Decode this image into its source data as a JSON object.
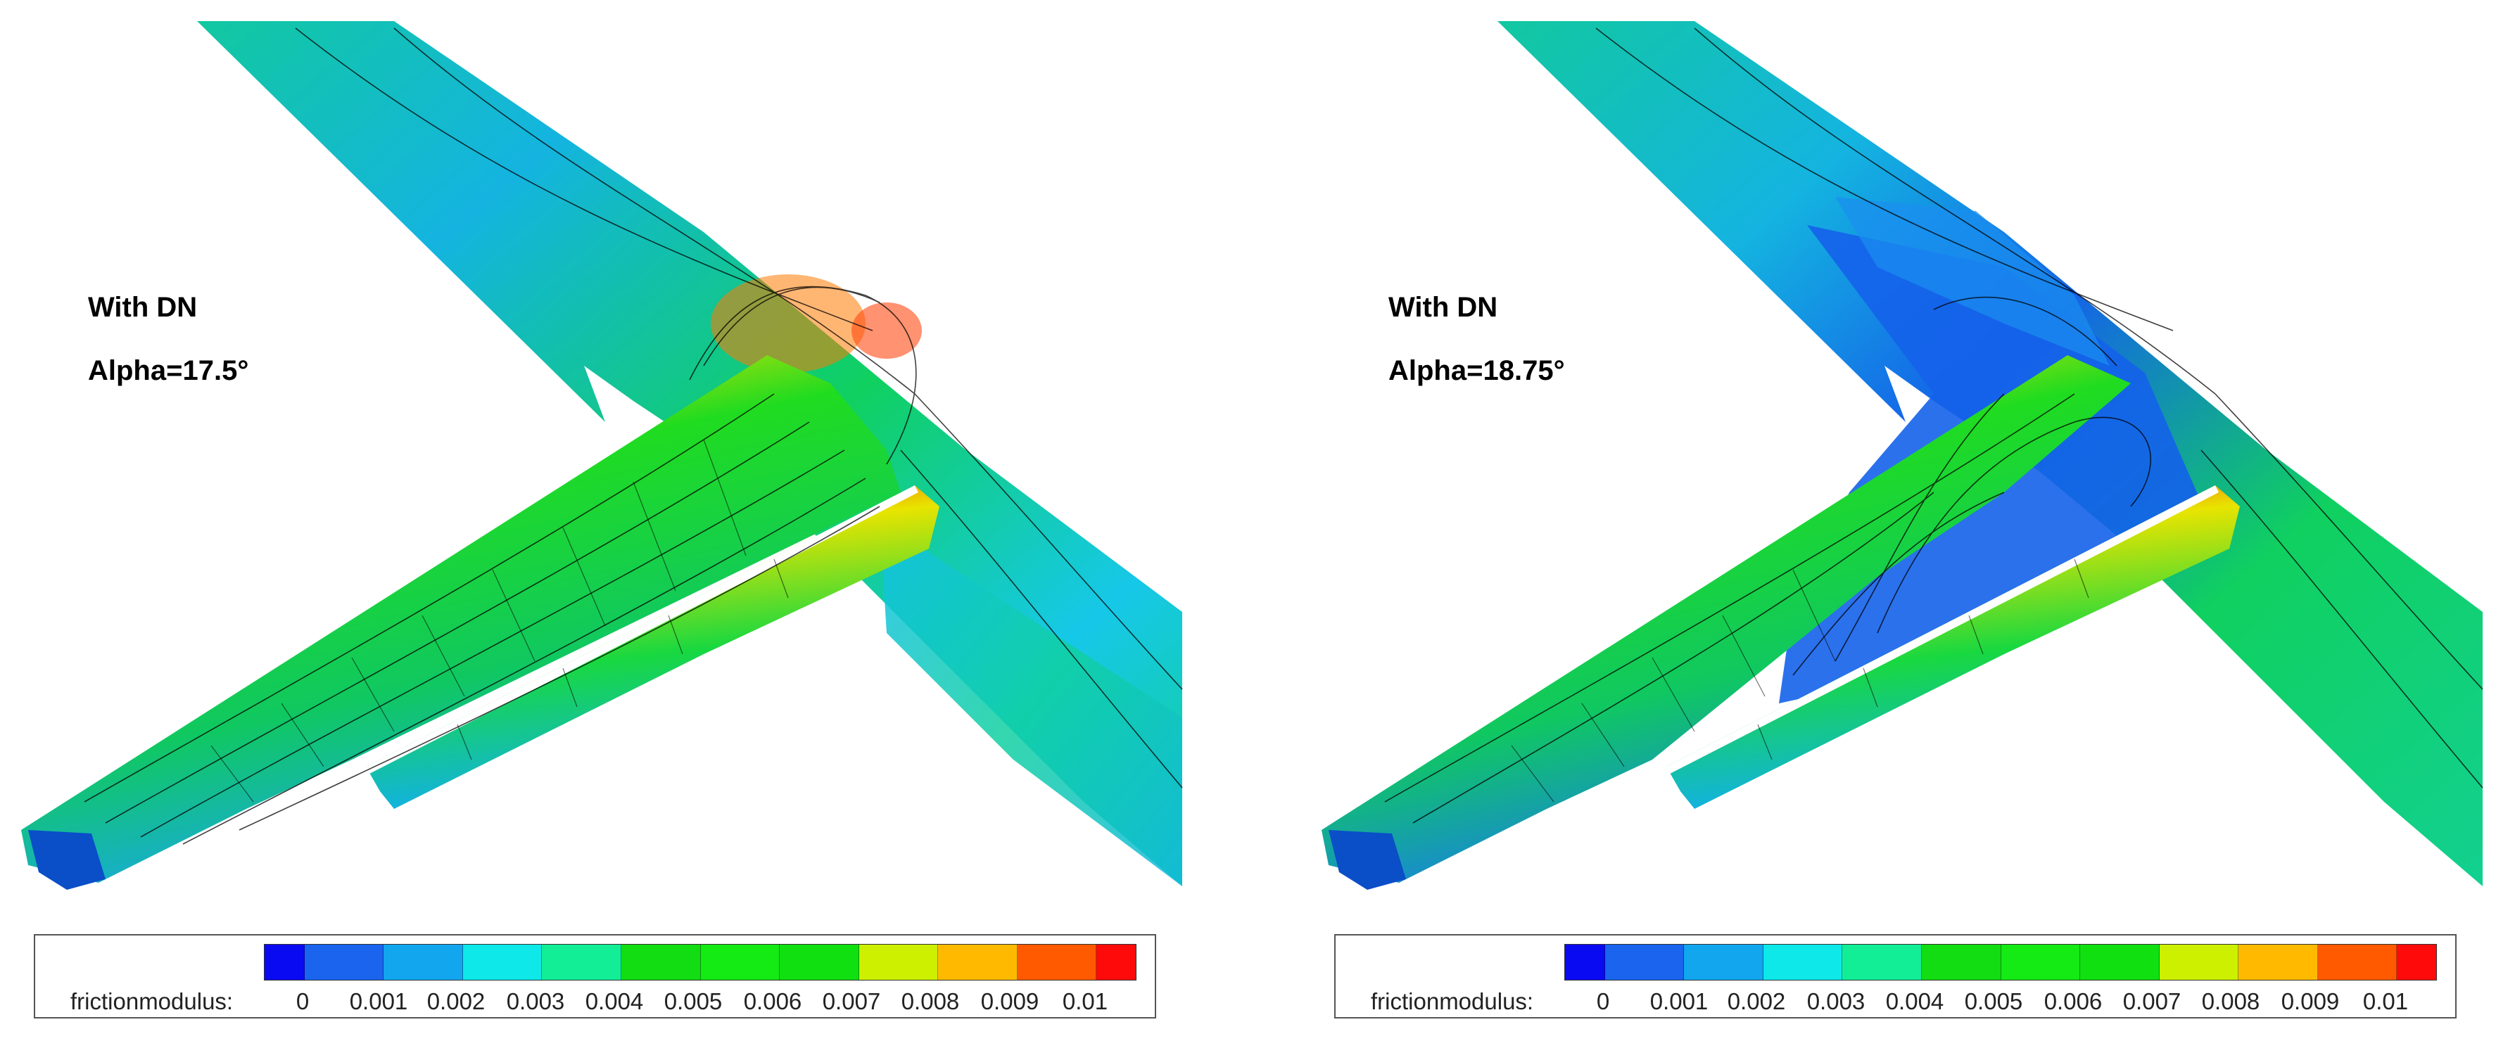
{
  "panels": [
    {
      "config_label": "With DN",
      "alpha_label": "Alpha=17.5°"
    },
    {
      "config_label": "With DN",
      "alpha_label": "Alpha=18.75°"
    }
  ],
  "colorbar": {
    "variable": "frictionmodulus:",
    "ticks": [
      "0",
      "0.001",
      "0.002",
      "0.003",
      "0.004",
      "0.005",
      "0.006",
      "0.007",
      "0.008",
      "0.009",
      "0.01"
    ],
    "colors": [
      "#0a0af2",
      "#1a64ee",
      "#12a6ee",
      "#0ee8e8",
      "#12ee96",
      "#12dc12",
      "#14ea14",
      "#10e010",
      "#cdf000",
      "#ffba00",
      "#ff5a00",
      "#ff0a0a"
    ]
  }
}
